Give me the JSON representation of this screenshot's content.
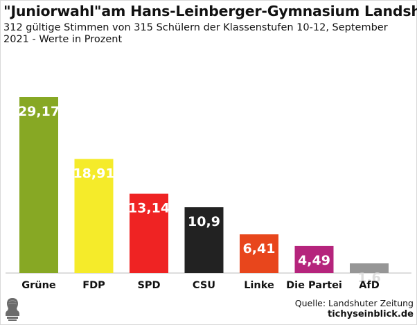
{
  "chart_data": {
    "type": "bar",
    "title": "\"Juniorwahl\"am Hans-Leinberger-Gymnasium Landshut",
    "subtitle": "312 gültige Stimmen von 315 Schülern der Klassenstufen 10-12, September 2021 - Werte in Prozent",
    "categories": [
      "Grüne",
      "FDP",
      "SPD",
      "CSU",
      "Linke",
      "Die Partei",
      "AfD"
    ],
    "values": [
      29.17,
      18.91,
      13.14,
      10.9,
      6.41,
      4.49,
      1.6
    ],
    "value_labels": [
      "29,17",
      "18,91",
      "13,14",
      "10,9",
      "6,41",
      "4,49",
      "1,6"
    ],
    "colors": [
      "#87a824",
      "#f5eb2a",
      "#ef2323",
      "#222222",
      "#e8461c",
      "#b5247c",
      "#969696"
    ],
    "label_colors": [
      "#ffffff",
      "#ffffff",
      "#ffffff",
      "#ffffff",
      "#ffffff",
      "#ffffff",
      "#dddddd"
    ],
    "ylim": [
      0,
      29.17
    ],
    "xlabel": "",
    "ylabel": "",
    "grid": false,
    "legend": "none"
  },
  "footer": {
    "source": "Quelle: Landshuter Zeitung",
    "brand": "tichyseinblick.de"
  },
  "logo": {
    "name": "bust-icon"
  }
}
